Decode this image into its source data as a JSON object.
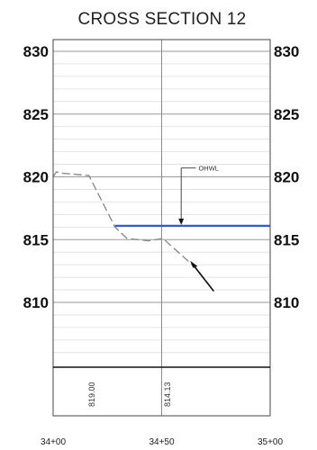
{
  "chart_data": {
    "type": "line",
    "title": "CROSS SECTION 12",
    "xlabel": "",
    "ylabel": "",
    "x_ticks": [
      "34+00",
      "34+50",
      "35+00"
    ],
    "y_ticks_left": [
      "830",
      "825",
      "820",
      "815",
      "810"
    ],
    "y_ticks_right": [
      "830",
      "825",
      "820",
      "815",
      "810"
    ],
    "xlim": [
      3400,
      3500
    ],
    "ylim": [
      805,
      830
    ],
    "grid": true,
    "series": [
      {
        "style": "dashed",
        "color": "#8c8c8c",
        "x": [
          3400,
          3401.5,
          3403.5,
          3416.5,
          3428.5,
          3434,
          3444,
          3450.5,
          3452.5,
          3466,
          3474
        ],
        "y": [
          820.0,
          820.4,
          820.3,
          820.1,
          816.0,
          815.1,
          814.9,
          815.1,
          814.8,
          812.7,
          810.9
        ]
      },
      {
        "name": "OHWL",
        "style": "solid",
        "color": "#2d5fd0",
        "x": [
          3428.5,
          3500
        ],
        "y": [
          816.1,
          816.1
        ]
      }
    ],
    "annotations": [
      {
        "text": "OHWL",
        "x": 3467,
        "y": 820.7
      }
    ],
    "station_elevations": [
      {
        "x": 3419,
        "label": "819.00"
      },
      {
        "x": 3454,
        "label": "814.13"
      }
    ]
  }
}
